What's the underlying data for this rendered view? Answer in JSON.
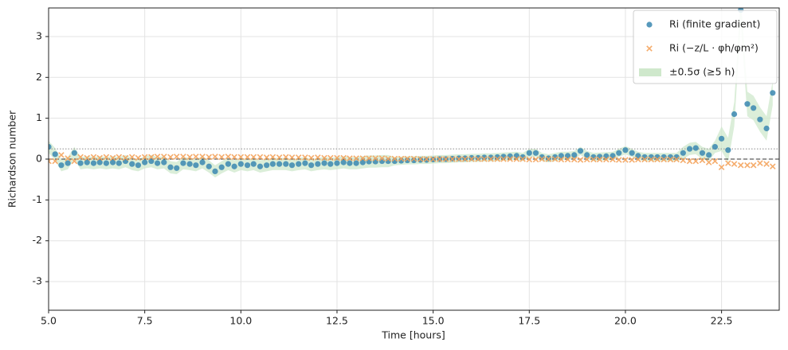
{
  "chart_data": {
    "type": "scatter",
    "xlabel": "Time [hours]",
    "ylabel": "Richardson number",
    "xlim": [
      5,
      24
    ],
    "ylim": [
      -3.7,
      3.7
    ],
    "xticks": [
      {
        "value": 5,
        "label": "5.0"
      },
      {
        "value": 7.5,
        "label": "7.5"
      },
      {
        "value": 10,
        "label": "10.0"
      },
      {
        "value": 12.5,
        "label": "12.5"
      },
      {
        "value": 15,
        "label": "15.0"
      },
      {
        "value": 17.5,
        "label": "17.5"
      },
      {
        "value": 20,
        "label": "20.0"
      },
      {
        "value": 22.5,
        "label": "22.5"
      }
    ],
    "yticks": [
      -3,
      -2,
      -1,
      0,
      1,
      2,
      3
    ],
    "grid": true,
    "legend": "upper right",
    "hlines": [
      {
        "value": 0,
        "style": "dashed",
        "color": "#333333"
      },
      {
        "value": 0.25,
        "style": "dotted",
        "color": "#999999"
      }
    ],
    "x": [
      5,
      5.17,
      5.33,
      5.5,
      5.67,
      5.83,
      6,
      6.17,
      6.33,
      6.5,
      6.67,
      6.83,
      7,
      7.17,
      7.33,
      7.5,
      7.67,
      7.83,
      8,
      8.17,
      8.33,
      8.5,
      8.67,
      8.83,
      9,
      9.17,
      9.33,
      9.5,
      9.67,
      9.83,
      10,
      10.17,
      10.33,
      10.5,
      10.67,
      10.83,
      11,
      11.17,
      11.33,
      11.5,
      11.67,
      11.83,
      12,
      12.17,
      12.33,
      12.5,
      12.67,
      12.83,
      13,
      13.17,
      13.33,
      13.5,
      13.67,
      13.83,
      14,
      14.17,
      14.33,
      14.5,
      14.67,
      14.83,
      15,
      15.17,
      15.33,
      15.5,
      15.67,
      15.83,
      16,
      16.17,
      16.33,
      16.5,
      16.67,
      16.83,
      17,
      17.17,
      17.33,
      17.5,
      17.67,
      17.83,
      18,
      18.17,
      18.33,
      18.5,
      18.67,
      18.83,
      19,
      19.17,
      19.33,
      19.5,
      19.67,
      19.83,
      20,
      20.17,
      20.33,
      20.5,
      20.67,
      20.83,
      21,
      21.17,
      21.33,
      21.5,
      21.67,
      21.83,
      22,
      22.17,
      22.33,
      22.5,
      22.67,
      22.83,
      23,
      23.17,
      23.33,
      23.5,
      23.67,
      23.83
    ],
    "band": {
      "name": "±0.5σ (≥5 h)",
      "color": "#cfe8cc",
      "lower": [
        0.15,
        -0.03,
        -0.3,
        -0.25,
        0,
        -0.25,
        -0.23,
        -0.25,
        -0.23,
        -0.25,
        -0.23,
        -0.25,
        -0.2,
        -0.27,
        -0.3,
        -0.23,
        -0.2,
        -0.25,
        -0.23,
        -0.35,
        -0.37,
        -0.25,
        -0.27,
        -0.3,
        -0.23,
        -0.33,
        -0.45,
        -0.35,
        -0.27,
        -0.33,
        -0.27,
        -0.3,
        -0.27,
        -0.33,
        -0.3,
        -0.27,
        -0.27,
        -0.27,
        -0.3,
        -0.27,
        -0.25,
        -0.3,
        -0.27,
        -0.25,
        -0.27,
        -0.25,
        -0.23,
        -0.25,
        -0.25,
        -0.23,
        -0.21,
        -0.21,
        -0.2,
        -0.2,
        -0.15,
        -0.14,
        -0.13,
        -0.13,
        -0.12,
        -0.12,
        -0.11,
        -0.1,
        -0.1,
        -0.09,
        -0.08,
        -0.08,
        -0.07,
        -0.07,
        -0.06,
        -0.06,
        -0.05,
        -0.04,
        -0.03,
        -0.02,
        -0.05,
        0.05,
        0.05,
        -0.05,
        -0.08,
        -0.05,
        -0.02,
        -0.02,
        0,
        0.1,
        0,
        -0.05,
        -0.04,
        -0.03,
        -0.02,
        0.05,
        0.12,
        0.05,
        -0.02,
        -0.05,
        -0.05,
        -0.05,
        -0.05,
        -0.05,
        -0.05,
        0,
        0.1,
        0.12,
        0,
        -0.05,
        0.15,
        0.2,
        -0.08,
        0.8,
        3.35,
        1.05,
        0.95,
        0.67,
        0.45,
        1.32
      ],
      "upper": [
        0.45,
        0.27,
        0,
        0.05,
        0.3,
        0.05,
        0.07,
        0.05,
        0.07,
        0.05,
        0.07,
        0.05,
        0.1,
        0.03,
        0,
        0.07,
        0.1,
        0.05,
        0.07,
        -0.05,
        -0.07,
        0.05,
        0.03,
        0,
        0.07,
        -0.03,
        -0.15,
        -0.05,
        0.03,
        -0.03,
        0.03,
        0,
        0.03,
        -0.03,
        0,
        0.03,
        0.03,
        0.03,
        0,
        0.03,
        0.05,
        0,
        0.03,
        0.05,
        0.03,
        0.05,
        0.07,
        0.05,
        0.05,
        0.07,
        0.09,
        0.09,
        0.1,
        0.1,
        0.05,
        0.06,
        0.07,
        0.07,
        0.08,
        0.08,
        0.09,
        0.1,
        0.1,
        0.11,
        0.12,
        0.12,
        0.13,
        0.13,
        0.14,
        0.14,
        0.15,
        0.16,
        0.17,
        0.18,
        0.15,
        0.25,
        0.25,
        0.15,
        0.12,
        0.15,
        0.18,
        0.18,
        0.2,
        0.3,
        0.2,
        0.15,
        0.16,
        0.17,
        0.18,
        0.25,
        0.32,
        0.25,
        0.18,
        0.15,
        0.15,
        0.15,
        0.15,
        0.15,
        0.15,
        0.3,
        0.4,
        0.42,
        0.3,
        0.25,
        0.45,
        0.8,
        0.52,
        1.4,
        3.95,
        1.65,
        1.55,
        1.27,
        1.05,
        1.92
      ]
    },
    "series": [
      {
        "name": "Ri (finite gradient)",
        "color": "#3a87b0",
        "marker": "circle",
        "values": [
          0.3,
          0.12,
          -0.15,
          -0.1,
          0.15,
          -0.1,
          -0.08,
          -0.1,
          -0.08,
          -0.1,
          -0.08,
          -0.1,
          -0.05,
          -0.12,
          -0.15,
          -0.08,
          -0.05,
          -0.1,
          -0.08,
          -0.2,
          -0.22,
          -0.1,
          -0.12,
          -0.15,
          -0.08,
          -0.18,
          -0.3,
          -0.2,
          -0.12,
          -0.18,
          -0.12,
          -0.15,
          -0.12,
          -0.18,
          -0.15,
          -0.12,
          -0.12,
          -0.12,
          -0.15,
          -0.12,
          -0.1,
          -0.15,
          -0.12,
          -0.1,
          -0.12,
          -0.1,
          -0.08,
          -0.1,
          -0.1,
          -0.08,
          -0.06,
          -0.06,
          -0.05,
          -0.05,
          -0.05,
          -0.04,
          -0.03,
          -0.03,
          -0.02,
          -0.02,
          -0.01,
          0,
          0,
          0.01,
          0.02,
          0.02,
          0.03,
          0.03,
          0.04,
          0.04,
          0.05,
          0.06,
          0.07,
          0.08,
          0.05,
          0.15,
          0.15,
          0.05,
          0.02,
          0.05,
          0.08,
          0.08,
          0.1,
          0.2,
          0.1,
          0.05,
          0.06,
          0.07,
          0.08,
          0.15,
          0.22,
          0.15,
          0.08,
          0.05,
          0.05,
          0.05,
          0.05,
          0.05,
          0.05,
          0.15,
          0.25,
          0.27,
          0.15,
          0.1,
          0.3,
          0.5,
          0.22,
          1.1,
          3.65,
          1.35,
          1.25,
          0.97,
          0.75,
          1.62
        ]
      },
      {
        "name": "Ri (−z/L · φh/φm²)",
        "color": "#f4a35c",
        "marker": "x",
        "values": [
          -0.05,
          -0.05,
          0.1,
          0.02,
          -0.05,
          0.05,
          0.03,
          0.05,
          0.03,
          0.05,
          0.03,
          0.05,
          0.03,
          0.05,
          0.03,
          0.05,
          0.05,
          0.06,
          0.06,
          0.05,
          0.06,
          0.06,
          0.05,
          0.06,
          0.06,
          0.05,
          0.06,
          0.05,
          0.06,
          0.05,
          0.05,
          0.05,
          0.05,
          0.05,
          0.04,
          0.05,
          0.04,
          0.05,
          0.04,
          0.04,
          0.04,
          0.03,
          0.04,
          0.03,
          0.03,
          0.03,
          0.03,
          0.02,
          0.02,
          0.02,
          0.02,
          0.02,
          0.02,
          0.01,
          0.01,
          0.01,
          0.01,
          0.01,
          0,
          0,
          0,
          0,
          0,
          0,
          0,
          0,
          0,
          0,
          0,
          0,
          0,
          0,
          0,
          0,
          0,
          -0.01,
          -0.01,
          0,
          0,
          0,
          -0.01,
          -0.01,
          -0.01,
          -0.02,
          -0.01,
          -0.01,
          -0.01,
          -0.01,
          -0.01,
          -0.02,
          -0.02,
          -0.02,
          -0.01,
          -0.01,
          -0.01,
          -0.01,
          -0.01,
          -0.01,
          -0.01,
          -0.03,
          -0.05,
          -0.05,
          -0.03,
          -0.08,
          -0.05,
          -0.2,
          -0.1,
          -0.12,
          -0.15,
          -0.15,
          -0.15,
          -0.1,
          -0.12,
          -0.18
        ]
      }
    ]
  }
}
